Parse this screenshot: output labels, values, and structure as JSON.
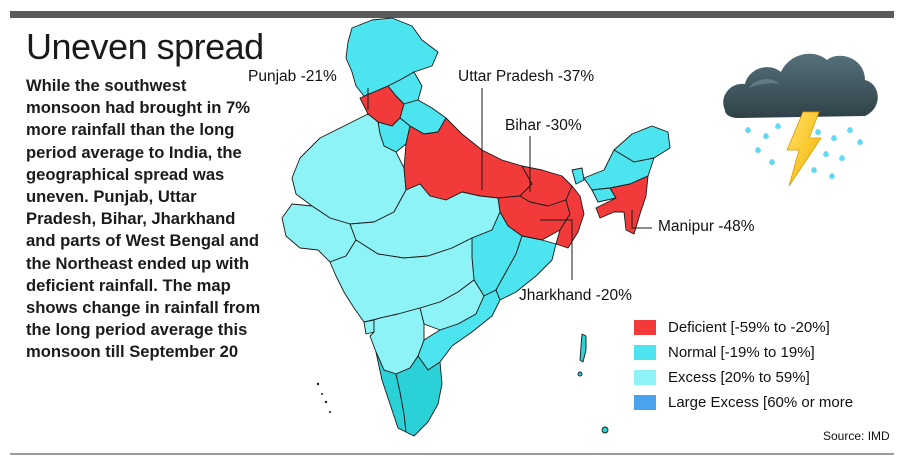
{
  "header": {
    "title": "Uneven spread"
  },
  "description": "While the southwest monsoon had brought in 7% more rainfall than the long period average to India, the geographical spread was uneven. Punjab, Uttar Pradesh, Bihar, Jharkhand and parts of West Bengal and the Northeast ended up with deficient rainfall. The map shows change in rainfall from the long period average this monsoon till September 20",
  "callouts": {
    "punjab": "Punjab -21%",
    "uttar_pradesh": "Uttar Pradesh -37%",
    "bihar": "Bihar -30%",
    "manipur": "Manipur  -48%",
    "jharkhand": "Jharkhand -20%"
  },
  "legend": [
    {
      "label": "Deficient [-59% to -20%]",
      "color": "#f23a3a"
    },
    {
      "label": "Normal [-19% to 19%]",
      "color": "#4ce4ee"
    },
    {
      "label": "Excess [20% to 59%]",
      "color": "#8ef3f6"
    },
    {
      "label": "Large Excess [60% or more",
      "color": "#4aa3ee"
    }
  ],
  "source": "Source: IMD",
  "colors": {
    "deficient": "#f23a3a",
    "normal": "#4ce4ee",
    "excess": "#8ef3f6",
    "normal_dark": "#2ad2d8",
    "border": "#1a1a1a"
  },
  "icons": {
    "weather": "storm-cloud-lightning-icon"
  }
}
